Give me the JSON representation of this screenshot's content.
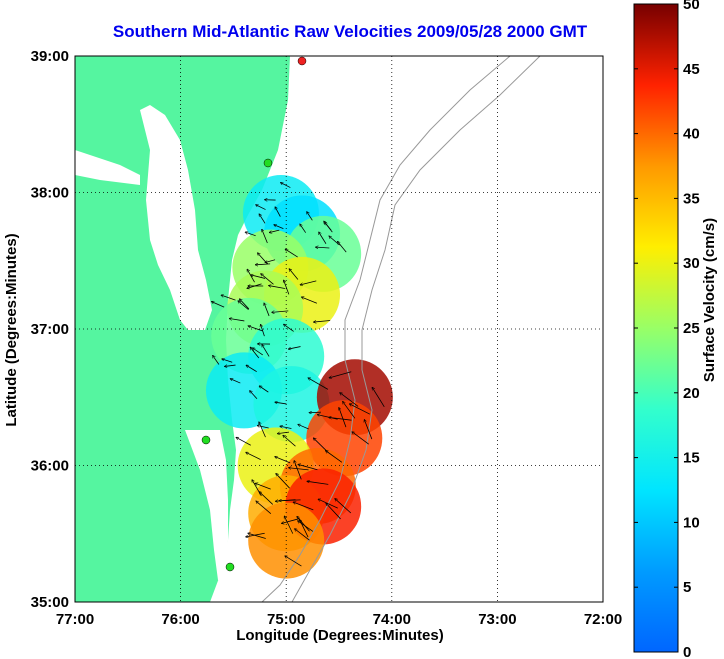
{
  "chart_data": {
    "type": "heatmap",
    "title": "Southern Mid-Atlantic Raw Velocities 2009/05/28 2000 GMT",
    "xlabel": "Longitude (Degrees:Minutes)",
    "ylabel": "Latitude (Degrees:Minutes)",
    "x_ticks": [
      "77:00",
      "76:00",
      "75:00",
      "74:00",
      "73:00",
      "72:00"
    ],
    "y_ticks": [
      "39:00",
      "38:00",
      "37:00",
      "36:00",
      "35:00"
    ],
    "xlim": [
      -77,
      -72
    ],
    "ylim": [
      35,
      39
    ],
    "grid": true,
    "colorbar": {
      "label": "Surface Velocity (cm/s)",
      "range": [
        0,
        50
      ],
      "ticks": [
        "0",
        "5",
        "10",
        "15",
        "20",
        "25",
        "30",
        "35",
        "40",
        "45",
        "50"
      ],
      "colormap": "jet"
    },
    "colors": {
      "land": "#55f5a0",
      "water": "#ffffff",
      "title": "#0000ee",
      "station": "#22dd22",
      "station_top": "#ee2222"
    },
    "field": [
      {
        "lon": -75.05,
        "lat": 37.85,
        "speed": 14
      },
      {
        "lon": -74.85,
        "lat": 37.7,
        "speed": 12
      },
      {
        "lon": -74.65,
        "lat": 37.55,
        "speed": 22
      },
      {
        "lon": -75.15,
        "lat": 37.45,
        "speed": 25
      },
      {
        "lon": -74.85,
        "lat": 37.25,
        "speed": 30
      },
      {
        "lon": -75.2,
        "lat": 37.15,
        "speed": 26
      },
      {
        "lon": -75.35,
        "lat": 36.95,
        "speed": 22
      },
      {
        "lon": -75.0,
        "lat": 36.8,
        "speed": 18
      },
      {
        "lon": -75.4,
        "lat": 36.55,
        "speed": 14
      },
      {
        "lon": -74.95,
        "lat": 36.45,
        "speed": 16
      },
      {
        "lon": -74.35,
        "lat": 36.5,
        "speed": 48
      },
      {
        "lon": -74.45,
        "lat": 36.2,
        "speed": 42
      },
      {
        "lon": -75.1,
        "lat": 36.0,
        "speed": 30
      },
      {
        "lon": -74.7,
        "lat": 35.85,
        "speed": 40
      },
      {
        "lon": -75.0,
        "lat": 35.65,
        "speed": 36
      },
      {
        "lon": -74.65,
        "lat": 35.7,
        "speed": 44
      },
      {
        "lon": -75.0,
        "lat": 35.45,
        "speed": 38
      }
    ]
  }
}
